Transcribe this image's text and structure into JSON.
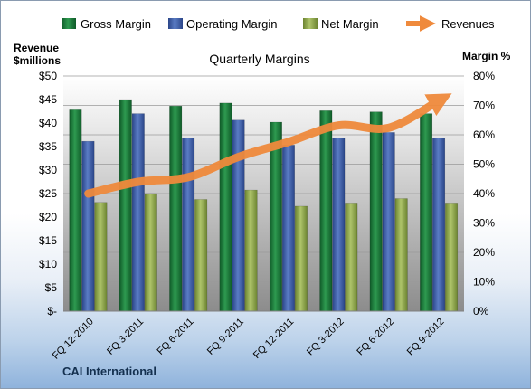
{
  "chart_data": {
    "type": "bar",
    "title": "Quarterly Margins",
    "left_axis_label_line1": "Revenue",
    "left_axis_label_line2": "$millions",
    "right_axis_label": "Margin %",
    "company": "CAI International",
    "categories": [
      "FQ 12-2010",
      "FQ 3-2011",
      "FQ 6-2011",
      "FQ 9-2011",
      "FQ 12-2011",
      "FQ 3-2012",
      "FQ 6-2012",
      "FQ 9-2012"
    ],
    "left_axis": {
      "min": 0,
      "max": 50,
      "step": 5,
      "ticks": [
        "$-",
        "$5",
        "$10",
        "$15",
        "$20",
        "$25",
        "$30",
        "$35",
        "$40",
        "$45",
        "$50"
      ]
    },
    "right_axis": {
      "min": 0,
      "max": 80,
      "step": 10,
      "ticks": [
        "0%",
        "10%",
        "20%",
        "30%",
        "40%",
        "50%",
        "60%",
        "70%",
        "80%"
      ]
    },
    "series": [
      {
        "name": "Gross Margin",
        "axis": "right",
        "color": "#1e7a3c",
        "values": [
          68.5,
          72,
          69.8,
          70.8,
          64.3,
          68.2,
          67.8,
          67.2
        ]
      },
      {
        "name": "Operating Margin",
        "axis": "right",
        "color": "#3f5fa8",
        "values": [
          57.8,
          67.2,
          59,
          65,
          56.5,
          59,
          60.8,
          59
        ]
      },
      {
        "name": "Net Margin",
        "axis": "right",
        "color": "#8fa84a",
        "values": [
          37,
          40,
          38,
          41.2,
          35.7,
          36.8,
          38.3,
          36.8
        ]
      },
      {
        "name": "Revenues",
        "axis": "left",
        "color": "#ef8a3c",
        "type": "line",
        "values": [
          25,
          27.5,
          28.5,
          32.8,
          36,
          39.5,
          39,
          44.8
        ]
      }
    ],
    "legend_position": "top",
    "grid": true
  }
}
